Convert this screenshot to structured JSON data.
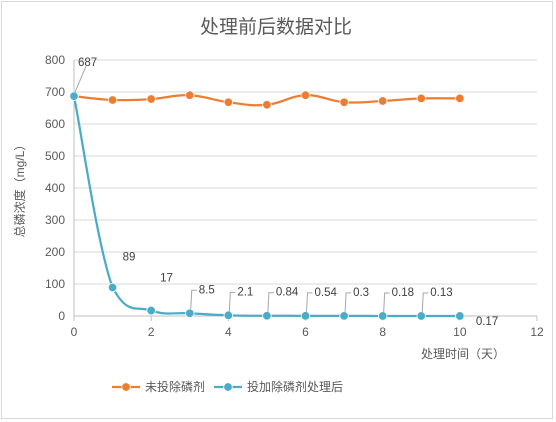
{
  "chart_data": {
    "type": "scatter",
    "title": "处理前后数据对比",
    "xlabel": "处理时间（天）",
    "ylabel": "总磷浓度（mg/L）",
    "xlim": [
      0,
      12
    ],
    "ylim": [
      0,
      800
    ],
    "x_ticks": [
      0,
      2,
      4,
      6,
      8,
      10,
      12
    ],
    "y_ticks": [
      0,
      100,
      200,
      300,
      400,
      500,
      600,
      700,
      800
    ],
    "grid": "horizontal",
    "legend_position": "bottom",
    "series": [
      {
        "name": "未投除磷剂",
        "color": "#ED7D31",
        "x": [
          0,
          1,
          2,
          3,
          4,
          5,
          6,
          7,
          8,
          9,
          10
        ],
        "values": [
          687,
          675,
          678,
          690,
          668,
          660,
          690,
          668,
          672,
          680,
          680
        ]
      },
      {
        "name": "投加除磷剂处理后",
        "color": "#4BACC6",
        "x": [
          0,
          1,
          2,
          3,
          4,
          5,
          6,
          7,
          8,
          9,
          10
        ],
        "values": [
          687,
          89,
          17,
          8.5,
          2.1,
          0.84,
          0.54,
          0.3,
          0.18,
          0.13,
          0.17
        ],
        "data_labels": [
          "687",
          "89",
          "17",
          "8.5",
          "2.1",
          "0.84",
          "0.54",
          "0.3",
          "0.18",
          "0.13",
          "0.17"
        ]
      }
    ]
  }
}
